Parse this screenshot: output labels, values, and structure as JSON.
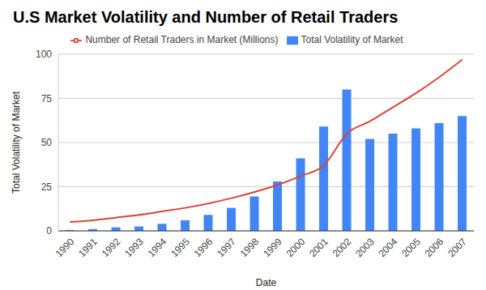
{
  "chart_data": {
    "type": "bar",
    "title": "U.S Market Volatility and Number of Retail Traders",
    "x_label": "Date",
    "y_label": "Total Volatility of Market",
    "categories": [
      "1990",
      "1991",
      "1992",
      "1993",
      "1994",
      "1995",
      "1996",
      "1997",
      "1998",
      "1999",
      "2000",
      "2001",
      "2002",
      "2003",
      "2004",
      "2005",
      "2006",
      "2007"
    ],
    "series": [
      {
        "name": "Total Volatility of Market",
        "type": "bar",
        "color": "#4285f4",
        "values": [
          0.5,
          1,
          2,
          2.5,
          4,
          6,
          9,
          13,
          19.5,
          28,
          41,
          59,
          80,
          52,
          55,
          58,
          61,
          65
        ]
      },
      {
        "name": "Number of Retail Traders in Market (Millions)",
        "type": "line",
        "color": "#db4437",
        "values": [
          5,
          6,
          7.5,
          9,
          11,
          13,
          15.5,
          18.5,
          22,
          26,
          31,
          37,
          55,
          62,
          70,
          78,
          87,
          97
        ]
      }
    ],
    "ylim": [
      0,
      100
    ],
    "yticks": [
      0,
      25,
      50,
      75,
      100
    ],
    "grid": true,
    "legend": "top"
  }
}
